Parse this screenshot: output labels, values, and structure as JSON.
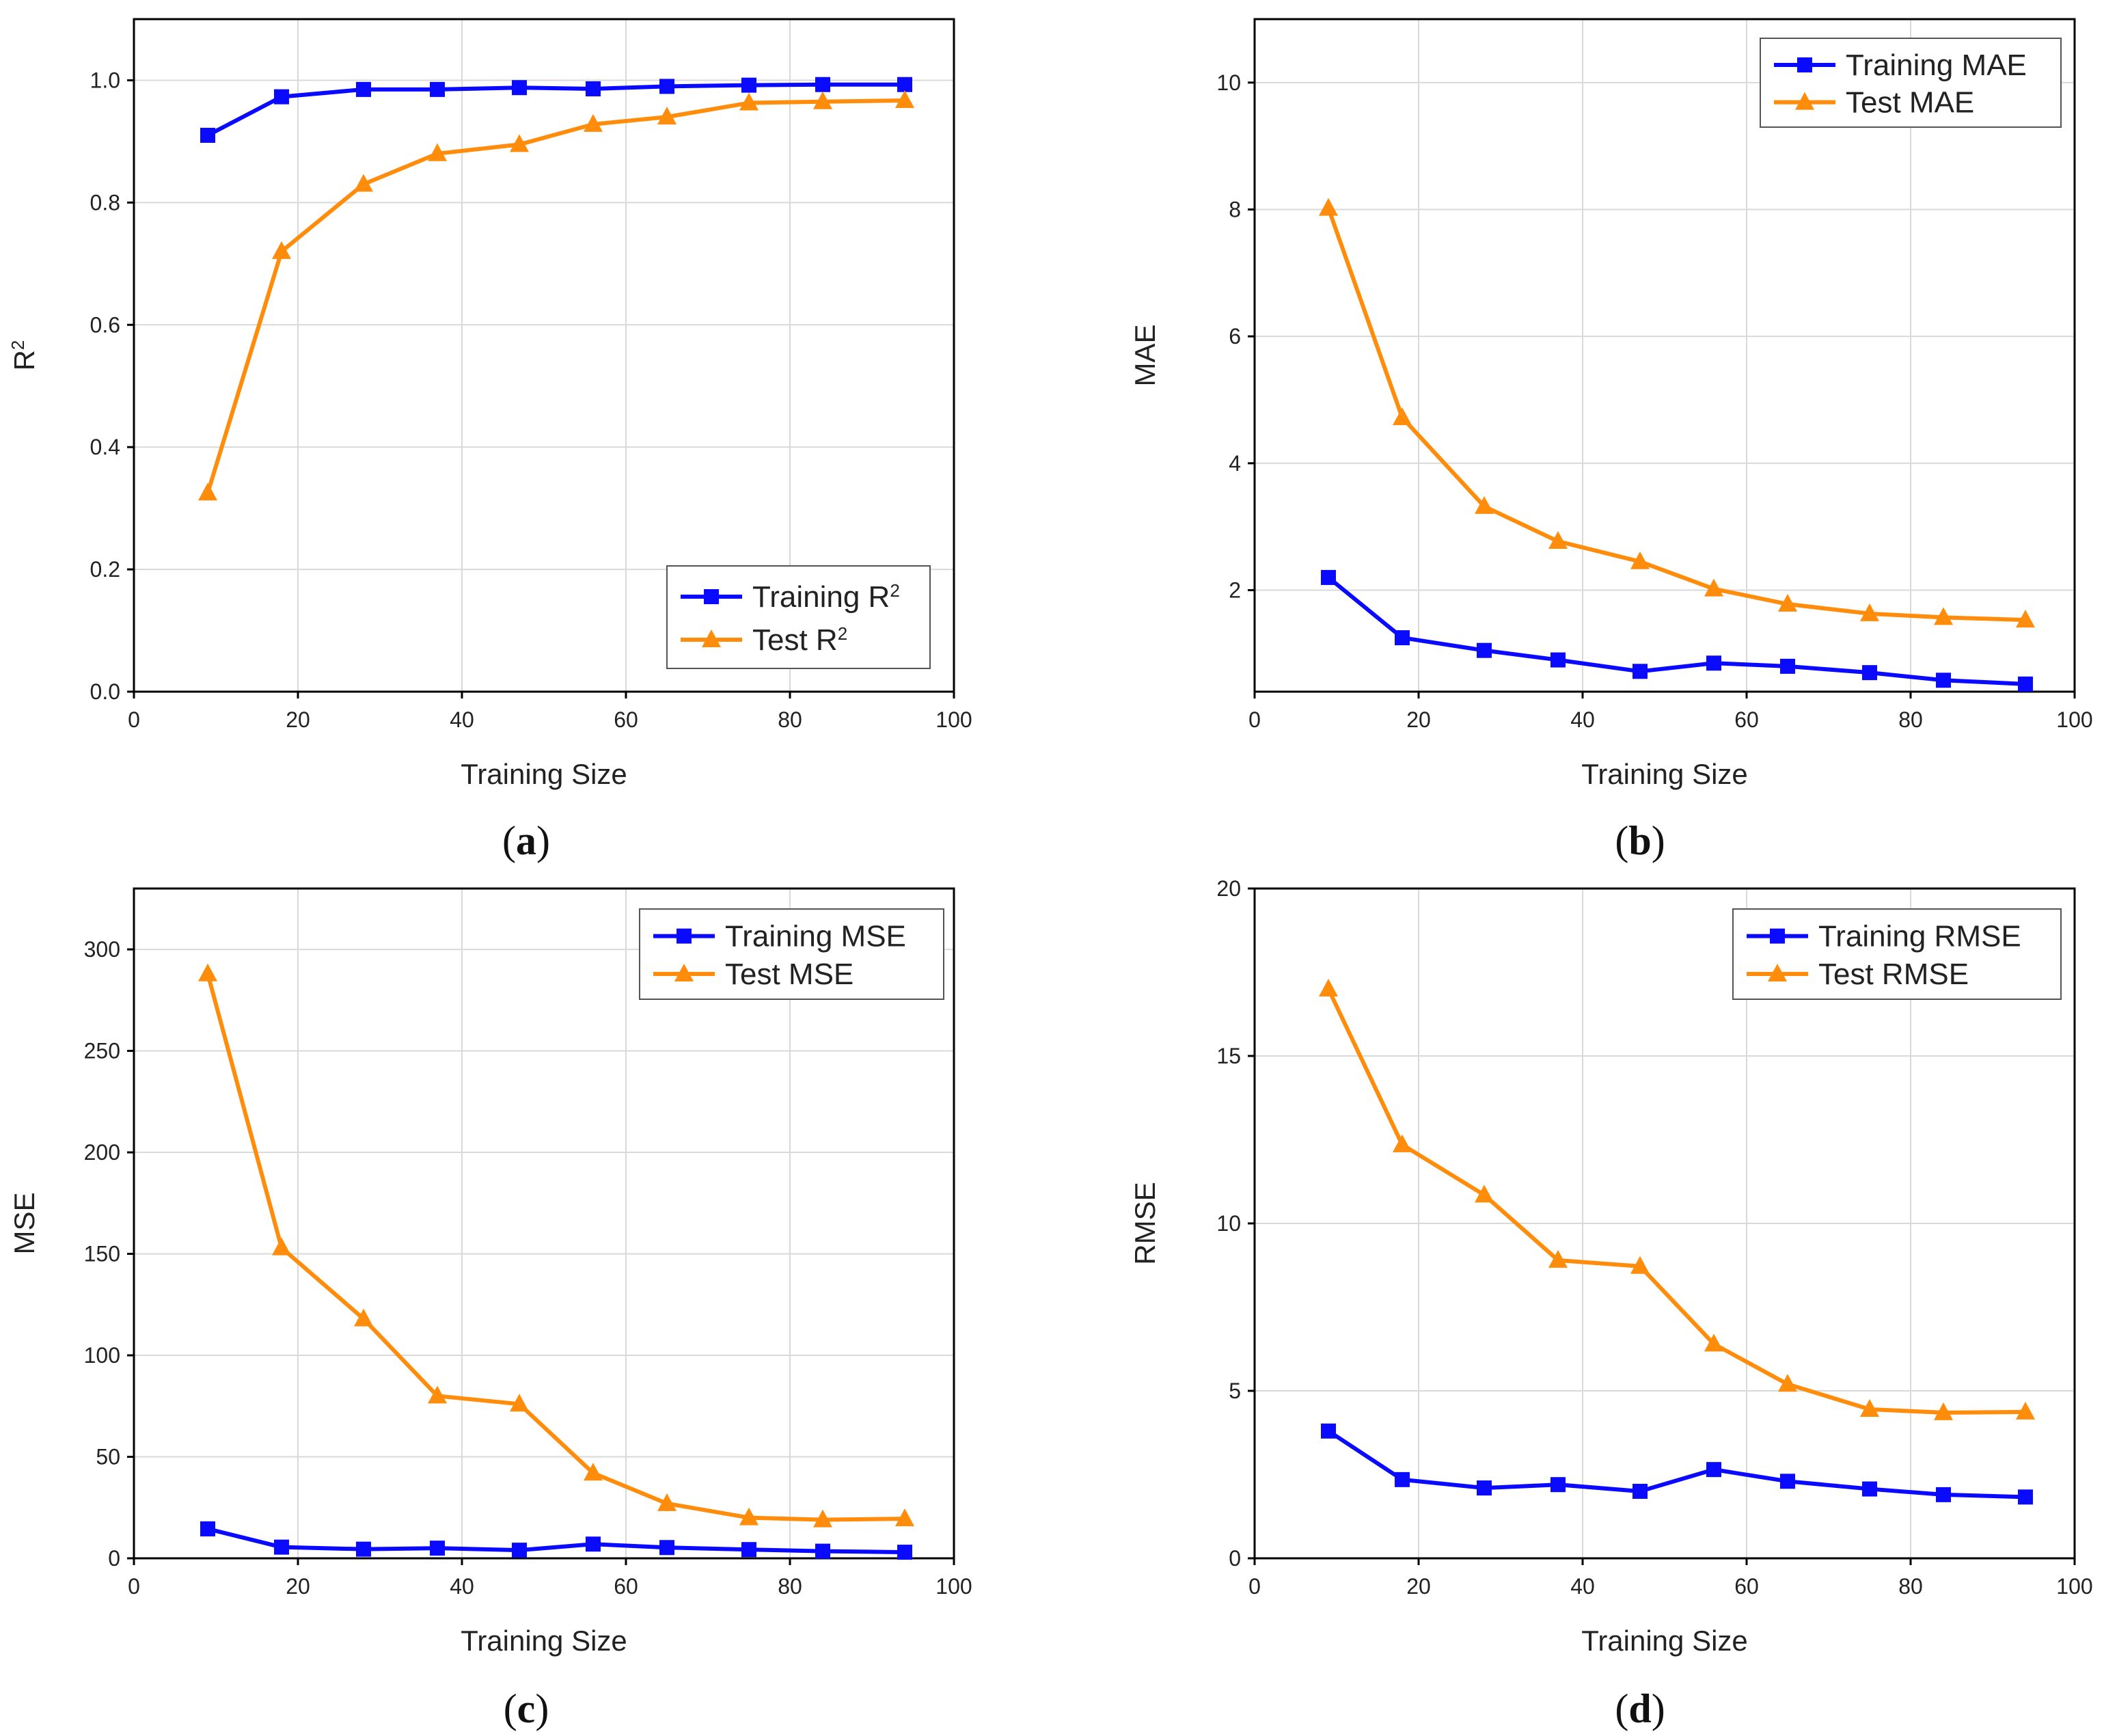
{
  "colors": {
    "training": "#0a0aff",
    "test": "#ff8c0a"
  },
  "chart_data": [
    {
      "id": "a",
      "type": "line",
      "caption": "(a)",
      "xlabel": "Training Size",
      "ylabel": "R",
      "ylabel_sup": "2",
      "xlim": [
        0,
        100
      ],
      "ylim": [
        0,
        1.1
      ],
      "xticks": [
        0,
        20,
        40,
        60,
        80,
        100
      ],
      "yticks": [
        0.0,
        0.2,
        0.4,
        0.6,
        0.8,
        1.0
      ],
      "ytick_labels": [
        "0.0",
        "0.2",
        "0.4",
        "0.6",
        "0.8",
        "1.0"
      ],
      "legend_position": "bottom-right",
      "x": [
        9,
        18,
        28,
        37,
        47,
        56,
        65,
        75,
        84,
        94
      ],
      "series": [
        {
          "name": "Training R",
          "sup": "2",
          "marker": "square",
          "values": [
            0.91,
            0.973,
            0.985,
            0.985,
            0.988,
            0.986,
            0.99,
            0.992,
            0.993,
            0.993
          ]
        },
        {
          "name": "Test R",
          "sup": "2",
          "marker": "triangle",
          "values": [
            0.325,
            0.72,
            0.83,
            0.88,
            0.895,
            0.928,
            0.94,
            0.963,
            0.965,
            0.967
          ]
        }
      ]
    },
    {
      "id": "b",
      "type": "line",
      "caption": "(b)",
      "xlabel": "Training Size",
      "ylabel": "MAE",
      "xlim": [
        0,
        100
      ],
      "ylim": [
        0.4,
        11
      ],
      "xticks": [
        0,
        20,
        40,
        60,
        80,
        100
      ],
      "yticks": [
        2,
        4,
        6,
        8,
        10
      ],
      "ytick_labels": [
        "2",
        "4",
        "6",
        "8",
        "10"
      ],
      "legend_position": "top-right",
      "x": [
        9,
        18,
        28,
        37,
        47,
        56,
        65,
        75,
        84,
        94
      ],
      "series": [
        {
          "name": "Training MAE",
          "marker": "square",
          "values": [
            2.2,
            1.25,
            1.05,
            0.9,
            0.72,
            0.85,
            0.8,
            0.7,
            0.58,
            0.52
          ]
        },
        {
          "name": "Test MAE",
          "marker": "triangle",
          "values": [
            8.02,
            4.72,
            3.32,
            2.77,
            2.45,
            2.02,
            1.78,
            1.63,
            1.57,
            1.53
          ]
        }
      ]
    },
    {
      "id": "c",
      "type": "line",
      "caption": "(c)",
      "xlabel": "Training Size",
      "ylabel": "MSE",
      "xlim": [
        0,
        100
      ],
      "ylim": [
        0,
        330
      ],
      "xticks": [
        0,
        20,
        40,
        60,
        80,
        100
      ],
      "yticks": [
        0,
        50,
        100,
        150,
        200,
        250,
        300
      ],
      "ytick_labels": [
        "0",
        "50",
        "100",
        "150",
        "200",
        "250",
        "300"
      ],
      "legend_position": "top-right",
      "x": [
        9,
        18,
        28,
        37,
        47,
        56,
        65,
        75,
        84,
        94
      ],
      "series": [
        {
          "name": "Training MSE",
          "marker": "square",
          "values": [
            14.5,
            5.5,
            4.5,
            5.0,
            4.0,
            7.0,
            5.3,
            4.3,
            3.5,
            3.0
          ]
        },
        {
          "name": "Test MSE",
          "marker": "triangle",
          "values": [
            288,
            153,
            118,
            80,
            76,
            42,
            27,
            20,
            19,
            19.5
          ]
        }
      ]
    },
    {
      "id": "d",
      "type": "line",
      "caption": "(d)",
      "xlabel": "Training Size",
      "ylabel": "RMSE",
      "xlim": [
        0,
        100
      ],
      "ylim": [
        0,
        20
      ],
      "xticks": [
        0,
        20,
        40,
        60,
        80,
        100
      ],
      "yticks": [
        0,
        5,
        10,
        15,
        20
      ],
      "ytick_labels": [
        "0",
        "5",
        "10",
        "15",
        "20"
      ],
      "legend_position": "top-right",
      "x": [
        9,
        18,
        28,
        37,
        47,
        56,
        65,
        75,
        84,
        94
      ],
      "series": [
        {
          "name": "Training RMSE",
          "marker": "square",
          "values": [
            3.8,
            2.35,
            2.1,
            2.2,
            2.0,
            2.65,
            2.3,
            2.07,
            1.9,
            1.83
          ]
        },
        {
          "name": "Test RMSE",
          "marker": "triangle",
          "values": [
            17.0,
            12.35,
            10.85,
            8.9,
            8.72,
            6.4,
            5.2,
            4.45,
            4.35,
            4.37
          ]
        }
      ]
    }
  ]
}
